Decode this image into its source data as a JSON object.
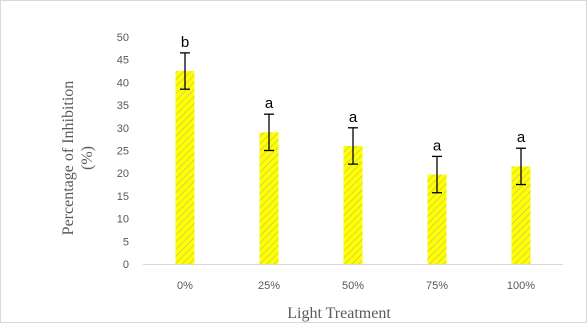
{
  "chart_data": {
    "type": "bar",
    "categories": [
      "0%",
      "25%",
      "50%",
      "75%",
      "100%"
    ],
    "values": [
      42.5,
      29,
      26,
      19.7,
      21.5
    ],
    "errors": [
      4,
      4,
      4,
      4,
      4
    ],
    "significance_labels": [
      "b",
      "a",
      "a",
      "a",
      "a"
    ],
    "title": "",
    "xlabel": "Light Treatment",
    "ylabel_line1": "Percentage of Inhibition",
    "ylabel_line2": "(%)",
    "ylim": [
      0,
      50
    ],
    "yticks": [
      0,
      5,
      10,
      15,
      20,
      25,
      30,
      35,
      40,
      45,
      50
    ],
    "grid": false,
    "bar_fill": "#ffff00",
    "bar_hatch": "#e2e25a",
    "error_color": "#000000",
    "axis_color": "#d9d9d9"
  }
}
